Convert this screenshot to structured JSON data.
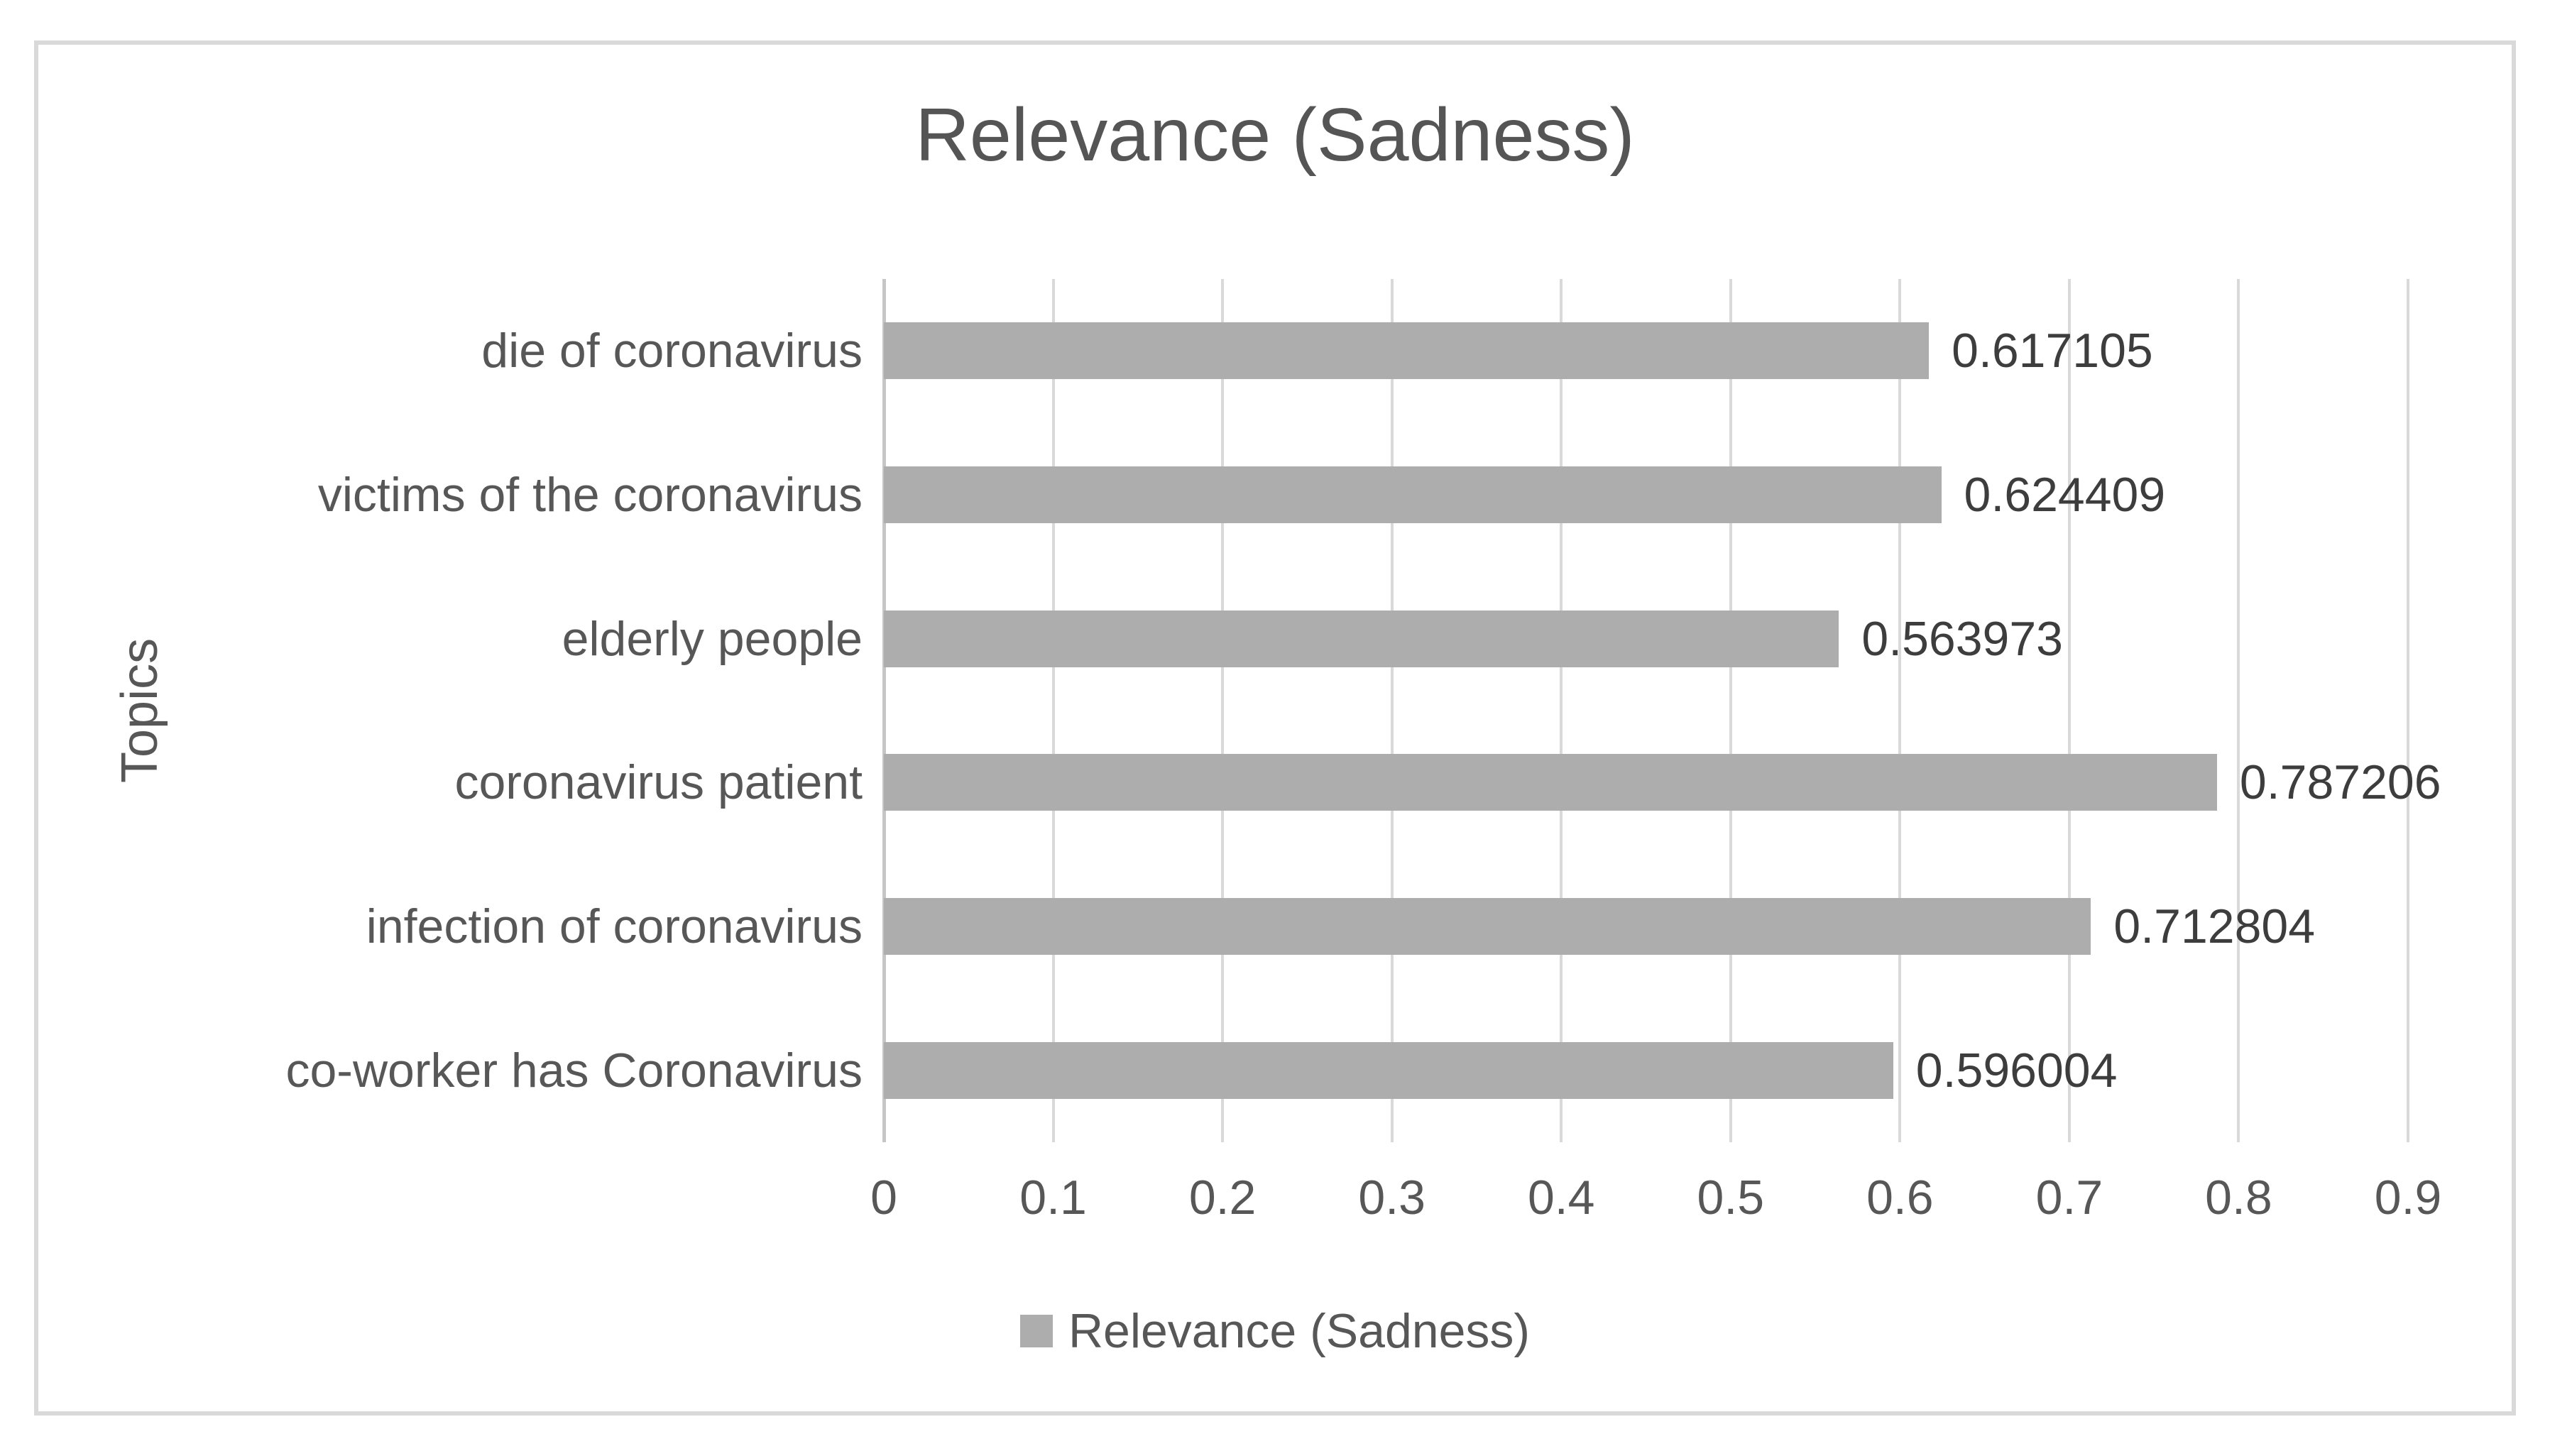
{
  "chart_data": {
    "type": "bar",
    "orientation": "horizontal",
    "title": "Relevance (Sadness)",
    "ylabel": "Topics",
    "xlabel": "",
    "categories": [
      "die of coronavirus",
      "victims of the coronavirus",
      "elderly people",
      "coronavirus patient",
      "infection of coronavirus",
      "co-worker has Coronavirus"
    ],
    "values": [
      0.617105,
      0.624409,
      0.563973,
      0.787206,
      0.712804,
      0.596004
    ],
    "value_labels": [
      "0.617105",
      "0.624409",
      "0.563973",
      "0.787206",
      "0.712804",
      "0.596004"
    ],
    "xlim": [
      0,
      0.9
    ],
    "xtick_labels": [
      "0",
      "0.1",
      "0.2",
      "0.3",
      "0.4",
      "0.5",
      "0.6",
      "0.7",
      "0.8",
      "0.9"
    ],
    "grid": "vertical gridlines on",
    "legend": {
      "position": "bottom-center",
      "label": "Relevance (Sadness)"
    }
  },
  "colors": {
    "background": "#ffffff",
    "frame_border": "#d9d9d9",
    "bar_fill": "#adadad",
    "gridline": "#d9d9d9",
    "zero_axis_line": "#c6c6c6",
    "title_text": "#555555",
    "axis_text": "#575757",
    "data_label_text": "#3d3d3d"
  }
}
